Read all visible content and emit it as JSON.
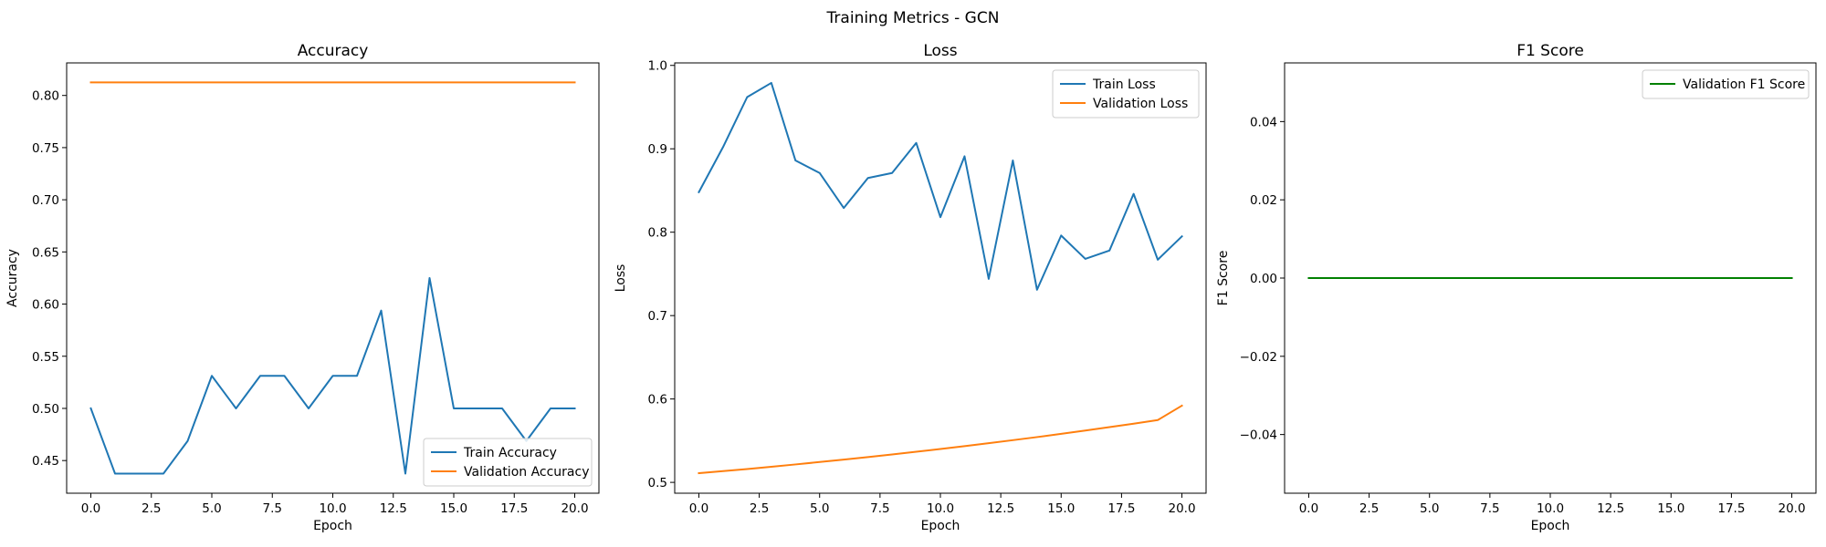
{
  "figure": {
    "suptitle": "Training Metrics - GCN"
  },
  "chart_data": [
    {
      "type": "line",
      "title": "Accuracy",
      "xlabel": "Epoch",
      "ylabel": "Accuracy",
      "xlim": [
        -1.0,
        21.0
      ],
      "ylim": [
        0.4187,
        0.8312
      ],
      "xticks": [
        0.0,
        2.5,
        5.0,
        7.5,
        10.0,
        12.5,
        15.0,
        17.5,
        20.0
      ],
      "xtick_labels": [
        "0.0",
        "2.5",
        "5.0",
        "7.5",
        "10.0",
        "12.5",
        "15.0",
        "17.5",
        "20.0"
      ],
      "yticks": [
        0.45,
        0.5,
        0.55,
        0.6,
        0.65,
        0.7,
        0.75,
        0.8
      ],
      "ytick_labels": [
        "0.45",
        "0.50",
        "0.55",
        "0.60",
        "0.65",
        "0.70",
        "0.75",
        "0.80"
      ],
      "grid": false,
      "legend_position": "lower right",
      "x": [
        0,
        1,
        2,
        3,
        4,
        5,
        6,
        7,
        8,
        9,
        10,
        11,
        12,
        13,
        14,
        15,
        16,
        17,
        18,
        19,
        20
      ],
      "series": [
        {
          "name": "Train Accuracy",
          "color": "#1f77b4",
          "values": [
            0.5,
            0.4375,
            0.4375,
            0.4375,
            0.46875,
            0.53125,
            0.5,
            0.53125,
            0.53125,
            0.5,
            0.53125,
            0.53125,
            0.59375,
            0.4375,
            0.625,
            0.5,
            0.5,
            0.5,
            0.46875,
            0.5,
            0.5
          ]
        },
        {
          "name": "Validation Accuracy",
          "color": "#ff7f0e",
          "values": [
            0.8125,
            0.8125,
            0.8125,
            0.8125,
            0.8125,
            0.8125,
            0.8125,
            0.8125,
            0.8125,
            0.8125,
            0.8125,
            0.8125,
            0.8125,
            0.8125,
            0.8125,
            0.8125,
            0.8125,
            0.8125,
            0.8125,
            0.8125,
            0.8125
          ]
        }
      ]
    },
    {
      "type": "line",
      "title": "Loss",
      "xlabel": "Epoch",
      "ylabel": "Loss",
      "xlim": [
        -1.0,
        21.0
      ],
      "ylim": [
        0.487,
        1.003
      ],
      "xticks": [
        0.0,
        2.5,
        5.0,
        7.5,
        10.0,
        12.5,
        15.0,
        17.5,
        20.0
      ],
      "xtick_labels": [
        "0.0",
        "2.5",
        "5.0",
        "7.5",
        "10.0",
        "12.5",
        "15.0",
        "17.5",
        "20.0"
      ],
      "yticks": [
        0.5,
        0.6,
        0.7,
        0.8,
        0.9,
        1.0
      ],
      "ytick_labels": [
        "0.5",
        "0.6",
        "0.7",
        "0.8",
        "0.9",
        "1.0"
      ],
      "grid": false,
      "legend_position": "upper right",
      "x": [
        0,
        1,
        2,
        3,
        4,
        5,
        6,
        7,
        8,
        9,
        10,
        11,
        12,
        13,
        14,
        15,
        16,
        17,
        18,
        19,
        20
      ],
      "series": [
        {
          "name": "Train Loss",
          "color": "#1f77b4",
          "values": [
            0.848,
            0.902,
            0.962,
            0.979,
            0.886,
            0.871,
            0.829,
            0.865,
            0.871,
            0.907,
            0.818,
            0.891,
            0.744,
            0.886,
            0.731,
            0.796,
            0.768,
            0.778,
            0.846,
            0.767,
            0.795
          ]
        },
        {
          "name": "Validation Loss",
          "color": "#ff7f0e",
          "values": [
            0.511,
            0.5135,
            0.516,
            0.5187,
            0.5215,
            0.5244,
            0.5273,
            0.5303,
            0.5335,
            0.5367,
            0.54,
            0.5434,
            0.547,
            0.5506,
            0.5543,
            0.5582,
            0.5621,
            0.5662,
            0.5704,
            0.5747,
            0.592
          ]
        }
      ]
    },
    {
      "type": "line",
      "title": "F1 Score",
      "xlabel": "Epoch",
      "ylabel": "F1 Score",
      "xlim": [
        -1.0,
        21.0
      ],
      "ylim": [
        -0.055,
        0.055
      ],
      "xticks": [
        0.0,
        2.5,
        5.0,
        7.5,
        10.0,
        12.5,
        15.0,
        17.5,
        20.0
      ],
      "xtick_labels": [
        "0.0",
        "2.5",
        "5.0",
        "7.5",
        "10.0",
        "12.5",
        "15.0",
        "17.5",
        "20.0"
      ],
      "yticks": [
        -0.04,
        -0.02,
        0.0,
        0.02,
        0.04
      ],
      "ytick_labels": [
        "−0.04",
        "−0.02",
        "0.00",
        "0.02",
        "0.04"
      ],
      "grid": false,
      "legend_position": "upper right",
      "x": [
        0,
        1,
        2,
        3,
        4,
        5,
        6,
        7,
        8,
        9,
        10,
        11,
        12,
        13,
        14,
        15,
        16,
        17,
        18,
        19,
        20
      ],
      "series": [
        {
          "name": "Validation F1 Score",
          "color": "#008000",
          "values": [
            0,
            0,
            0,
            0,
            0,
            0,
            0,
            0,
            0,
            0,
            0,
            0,
            0,
            0,
            0,
            0,
            0,
            0,
            0,
            0,
            0
          ]
        }
      ]
    }
  ]
}
